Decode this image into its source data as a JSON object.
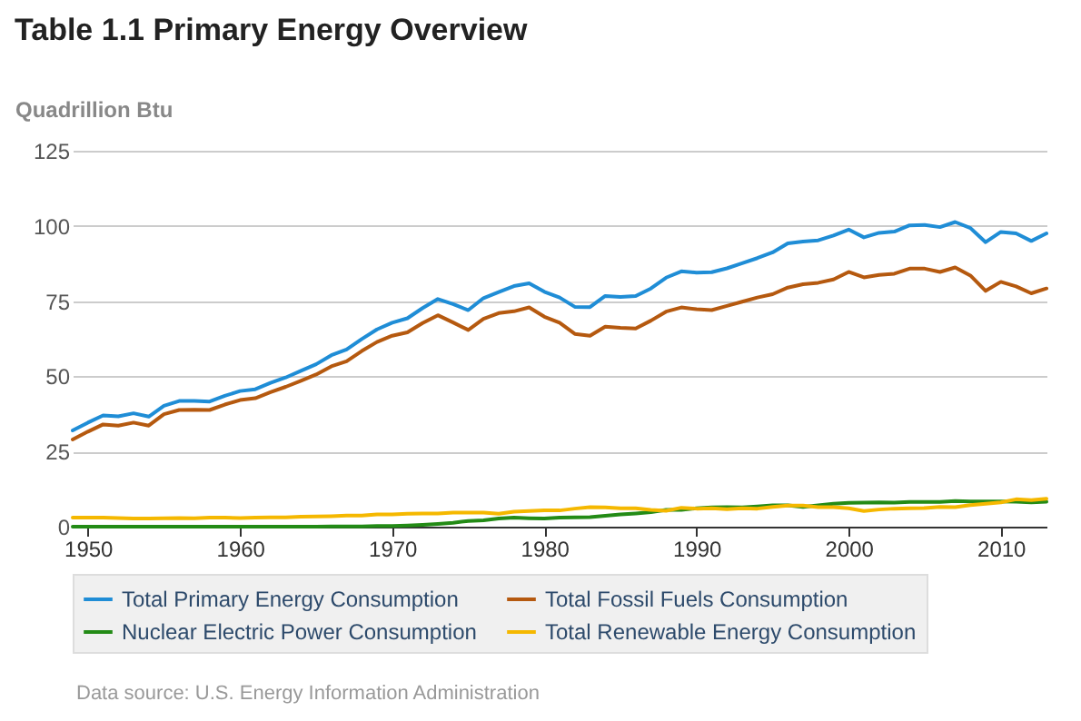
{
  "chart_data": {
    "type": "line",
    "title": "Table 1.1 Primary Energy Overview",
    "ylabel": "Quadrillion Btu",
    "annotations": [
      "Data source: U.S. Energy Information Administration"
    ],
    "x": [
      1949,
      1950,
      1951,
      1952,
      1953,
      1954,
      1955,
      1956,
      1957,
      1958,
      1959,
      1960,
      1961,
      1962,
      1963,
      1964,
      1965,
      1966,
      1967,
      1968,
      1969,
      1970,
      1971,
      1972,
      1973,
      1974,
      1975,
      1976,
      1977,
      1978,
      1979,
      1980,
      1981,
      1982,
      1983,
      1984,
      1985,
      1986,
      1987,
      1988,
      1989,
      1990,
      1991,
      1992,
      1993,
      1994,
      1995,
      1996,
      1997,
      1998,
      1999,
      2000,
      2001,
      2002,
      2003,
      2004,
      2005,
      2006,
      2007,
      2008,
      2009,
      2010,
      2011,
      2012,
      2013
    ],
    "series": [
      {
        "name": "Total Primary Energy Consumption",
        "color": "#1f8dd6",
        "values": [
          32.0,
          34.6,
          37.0,
          36.7,
          37.7,
          36.6,
          40.2,
          41.8,
          41.8,
          41.6,
          43.5,
          45.1,
          45.7,
          47.8,
          49.6,
          51.8,
          54.0,
          57.0,
          58.9,
          62.4,
          65.6,
          67.8,
          69.3,
          72.7,
          75.7,
          74.0,
          72.0,
          76.0,
          78.0,
          80.0,
          80.9,
          78.1,
          76.2,
          73.1,
          73.0,
          76.7,
          76.4,
          76.7,
          79.2,
          82.8,
          84.9,
          84.5,
          84.6,
          85.9,
          87.6,
          89.3,
          91.2,
          94.2,
          94.8,
          95.2,
          96.8,
          98.8,
          96.2,
          97.7,
          98.1,
          100.2,
          100.3,
          99.6,
          101.3,
          99.3,
          94.6,
          98.0,
          97.5,
          95.0,
          97.5
        ]
      },
      {
        "name": "Total Fossil Fuels Consumption",
        "color": "#b5590f",
        "values": [
          29.0,
          31.6,
          34.0,
          33.6,
          34.6,
          33.6,
          37.4,
          38.8,
          38.9,
          38.8,
          40.6,
          42.1,
          42.7,
          44.7,
          46.5,
          48.5,
          50.6,
          53.3,
          55.0,
          58.4,
          61.4,
          63.5,
          64.6,
          67.7,
          70.3,
          67.9,
          65.4,
          69.1,
          71.0,
          71.6,
          72.9,
          69.8,
          67.8,
          64.1,
          63.5,
          66.5,
          66.1,
          65.9,
          68.5,
          71.5,
          72.9,
          72.3,
          72.0,
          73.4,
          74.8,
          76.2,
          77.3,
          79.5,
          80.6,
          81.1,
          82.2,
          84.7,
          82.9,
          83.7,
          84.1,
          85.8,
          85.8,
          84.7,
          86.2,
          83.5,
          78.4,
          81.4,
          79.9,
          77.6,
          79.2
        ]
      },
      {
        "name": "Nuclear Electric Power Consumption",
        "color": "#238b16",
        "values": [
          0,
          0,
          0,
          0,
          0,
          0,
          0,
          0,
          0,
          0,
          0,
          0,
          0,
          0,
          0,
          0,
          0,
          0.1,
          0.1,
          0.1,
          0.2,
          0.2,
          0.4,
          0.6,
          0.9,
          1.3,
          1.9,
          2.1,
          2.7,
          3.0,
          2.8,
          2.7,
          3.0,
          3.1,
          3.2,
          3.6,
          4.1,
          4.4,
          4.8,
          5.6,
          5.6,
          6.1,
          6.4,
          6.5,
          6.4,
          6.7,
          7.1,
          7.1,
          6.6,
          7.1,
          7.6,
          7.9,
          8.0,
          8.1,
          8.0,
          8.2,
          8.2,
          8.2,
          8.5,
          8.4,
          8.4,
          8.4,
          8.3,
          8.1,
          8.3
        ]
      },
      {
        "name": "Total Renewable Energy Consumption",
        "color": "#f5b800",
        "values": [
          3.0,
          3.0,
          3.0,
          2.9,
          2.7,
          2.7,
          2.8,
          2.9,
          2.8,
          3.0,
          3.0,
          2.9,
          3.0,
          3.1,
          3.1,
          3.3,
          3.4,
          3.5,
          3.7,
          3.7,
          4.1,
          4.1,
          4.3,
          4.4,
          4.4,
          4.7,
          4.7,
          4.7,
          4.3,
          5.0,
          5.2,
          5.4,
          5.4,
          6.0,
          6.5,
          6.4,
          6.1,
          6.1,
          5.6,
          5.3,
          6.3,
          6.0,
          6.1,
          5.8,
          6.1,
          6.0,
          6.6,
          7.0,
          7.0,
          6.5,
          6.5,
          6.1,
          5.2,
          5.7,
          6.0,
          6.1,
          6.2,
          6.6,
          6.5,
          7.2,
          7.6,
          8.1,
          9.1,
          8.8,
          9.3
        ]
      }
    ],
    "xlim": [
      1949,
      2013
    ],
    "xticks": [
      1950,
      1960,
      1970,
      1980,
      1990,
      2000,
      2010
    ],
    "ylim": [
      0,
      125
    ],
    "yticks": [
      0,
      25,
      50,
      75,
      100,
      125
    ],
    "grid": "y",
    "legend": "bottom",
    "marker": "none",
    "line_style": "solid"
  }
}
